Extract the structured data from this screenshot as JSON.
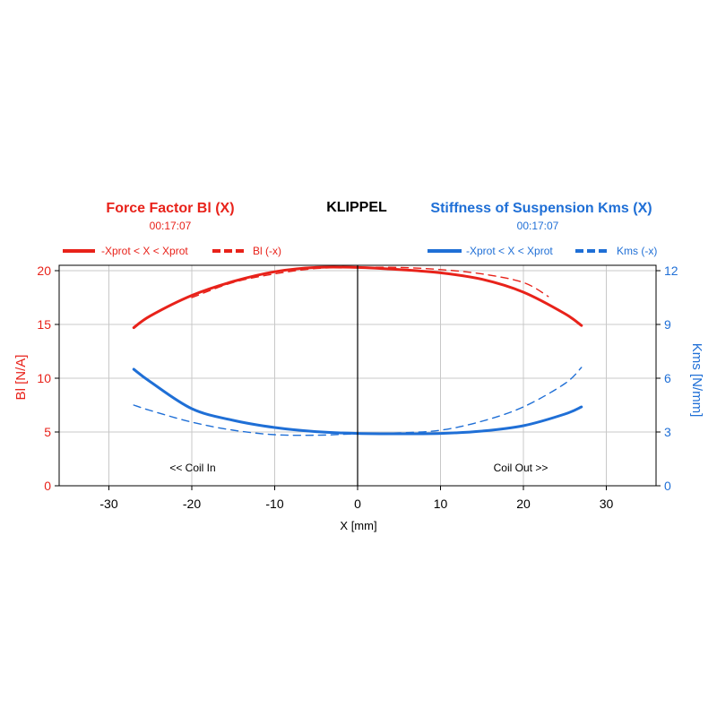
{
  "colors": {
    "bl": "#e8221a",
    "kms": "#1f6fd6",
    "grid": "#c8c8c8",
    "axis": "#000000"
  },
  "chart_data": {
    "type": "line",
    "brand": "KLIPPEL",
    "left_title": "Force Factor Bl (X)",
    "left_time": "00:17:07",
    "right_title": "Stiffness of Suspension Kms (X)",
    "right_time": "00:17:07",
    "xlabel": "X [mm]",
    "ylabel_left": "Bl [N/A]",
    "ylabel_right": "Kms [N/mm]",
    "xlim": [
      -36,
      36
    ],
    "ylim_left": [
      0,
      20.5
    ],
    "ylim_right": [
      0,
      12.3
    ],
    "xticks": [
      "-30",
      "-20",
      "-10",
      "0",
      "10",
      "20",
      "30"
    ],
    "yticks_left": [
      "0",
      "5",
      "10",
      "15",
      "20"
    ],
    "yticks_right": [
      "0",
      "3",
      "6",
      "9",
      "12"
    ],
    "annotations": {
      "left": "<< Coil In",
      "right": "Coil Out >>"
    },
    "legend_left": [
      {
        "label": "-Xprot < X < Xprot",
        "style": "solid"
      },
      {
        "label": "Bl (-x)",
        "style": "dashed"
      }
    ],
    "legend_right": [
      {
        "label": "-Xprot < X < Xprot",
        "style": "solid"
      },
      {
        "label": "Kms (-x)",
        "style": "dashed"
      }
    ],
    "grid": true,
    "series": [
      {
        "name": "-Xprot < X < Xprot",
        "axis": "left",
        "color": "#e8221a",
        "style": "solid",
        "x": [
          -27,
          -25,
          -20,
          -15,
          -10,
          -5,
          0,
          5,
          10,
          15,
          20,
          25,
          27
        ],
        "y": [
          14.7,
          15.8,
          17.7,
          19.0,
          19.9,
          20.3,
          20.3,
          20.1,
          19.8,
          19.2,
          18.0,
          16.0,
          14.9
        ]
      },
      {
        "name": "Bl (-x)",
        "axis": "left",
        "color": "#e8221a",
        "style": "dashed",
        "x": [
          -20,
          -15,
          -10,
          -5,
          0,
          5,
          10,
          15,
          20,
          23
        ],
        "y": [
          17.5,
          18.9,
          19.7,
          20.2,
          20.3,
          20.3,
          20.1,
          19.7,
          18.9,
          17.6
        ]
      },
      {
        "name": "-Xprot < X < Xprot",
        "axis": "right",
        "color": "#1f6fd6",
        "style": "solid",
        "x": [
          -27,
          -25,
          -20,
          -15,
          -10,
          -5,
          0,
          5,
          10,
          15,
          20,
          25,
          27
        ],
        "y": [
          6.5,
          5.8,
          4.3,
          3.65,
          3.25,
          3.02,
          2.92,
          2.9,
          2.92,
          3.05,
          3.35,
          4.0,
          4.4
        ]
      },
      {
        "name": "Kms (-x)",
        "axis": "right",
        "color": "#1f6fd6",
        "style": "dashed",
        "x": [
          -27,
          -25,
          -20,
          -15,
          -10,
          -5,
          0,
          5,
          10,
          15,
          20,
          25,
          27
        ],
        "y": [
          4.5,
          4.2,
          3.55,
          3.1,
          2.85,
          2.82,
          2.9,
          2.95,
          3.1,
          3.6,
          4.4,
          5.7,
          6.6
        ]
      }
    ]
  }
}
